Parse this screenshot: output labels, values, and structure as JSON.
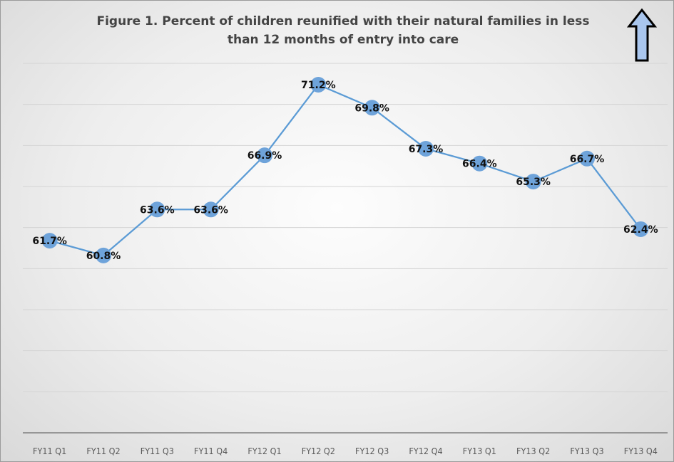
{
  "chart_data": {
    "type": "line",
    "title_lines": [
      "Figure 1. Percent of children reunified with their natural families in less",
      "than 12 months of entry into care"
    ],
    "categories": [
      "FY11 Q1",
      "FY11 Q2",
      "FY11 Q3",
      "FY11 Q4",
      "FY12 Q1",
      "FY12 Q2",
      "FY12 Q3",
      "FY12 Q4",
      "FY13 Q1",
      "FY13 Q2",
      "FY13 Q3",
      "FY13 Q4"
    ],
    "series": [
      {
        "values": [
          61.7,
          60.8,
          63.6,
          63.6,
          66.9,
          71.2,
          69.8,
          67.3,
          66.4,
          65.3,
          66.7,
          62.4
        ],
        "labels": [
          "61.7%",
          "60.8%",
          "63.6%",
          "63.6%",
          "66.9%",
          "71.2%",
          "69.8%",
          "67.3%",
          "66.4%",
          "65.3%",
          "66.7%",
          "62.4%"
        ],
        "color": "#5b9bd5"
      }
    ],
    "ylim": [
      50,
      72.5
    ],
    "y_axis_visible": false,
    "grid": true,
    "legend": "none"
  },
  "indicator": {
    "icon": "up-arrow-icon",
    "color": "#a9c6ee"
  }
}
